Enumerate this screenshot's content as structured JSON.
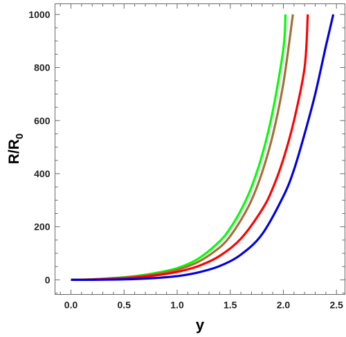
{
  "chart_data": {
    "type": "line",
    "title": "",
    "xlabel": "y",
    "ylabel": {
      "base": "R/R",
      "subscript": "0"
    },
    "xlim": [
      -0.15,
      2.58
    ],
    "ylim": [
      -55,
      1040
    ],
    "x_ticks": [
      0.0,
      0.5,
      1.0,
      1.5,
      2.0,
      2.5
    ],
    "x_tick_labels": [
      "0.0",
      "0.5",
      "1.0",
      "1.5",
      "2.0",
      "2.5"
    ],
    "y_ticks": [
      0,
      200,
      400,
      600,
      800,
      1000
    ],
    "y_tick_labels": [
      "0",
      "200",
      "400",
      "600",
      "800",
      "1000"
    ],
    "grid": false,
    "legend": "none",
    "series": [
      {
        "color": "#00ff00",
        "x": [
          0.0,
          0.2,
          0.4,
          0.6,
          0.8,
          1.0,
          1.2,
          1.4,
          1.5,
          1.6,
          1.7,
          1.8,
          1.9,
          2.0,
          2.02
        ],
        "y": [
          0,
          2,
          7,
          14,
          26,
          44,
          80,
          145,
          195,
          262,
          350,
          470,
          635,
          870,
          1000
        ]
      },
      {
        "color": "#a66e39",
        "x": [
          0.0,
          0.2,
          0.4,
          0.6,
          0.8,
          1.0,
          1.2,
          1.4,
          1.5,
          1.6,
          1.7,
          1.8,
          1.9,
          2.0,
          2.09
        ],
        "y": [
          0,
          2,
          6,
          12,
          22,
          38,
          68,
          122,
          165,
          225,
          300,
          405,
          545,
          740,
          1000
        ]
      },
      {
        "color": "#ff0000",
        "x": [
          0.0,
          0.2,
          0.4,
          0.6,
          0.8,
          1.0,
          1.2,
          1.4,
          1.6,
          1.8,
          1.9,
          2.0,
          2.1,
          2.2,
          2.23
        ],
        "y": [
          0,
          1,
          4,
          9,
          17,
          30,
          52,
          90,
          155,
          265,
          345,
          455,
          600,
          800,
          1000
        ]
      },
      {
        "color": "#0000e0",
        "x": [
          0.0,
          0.2,
          0.4,
          0.6,
          0.8,
          1.0,
          1.2,
          1.4,
          1.6,
          1.8,
          2.0,
          2.1,
          2.2,
          2.3,
          2.4,
          2.47
        ],
        "y": [
          0,
          0,
          1,
          3,
          7,
          14,
          28,
          52,
          95,
          172,
          315,
          415,
          550,
          700,
          880,
          1000
        ]
      }
    ]
  }
}
